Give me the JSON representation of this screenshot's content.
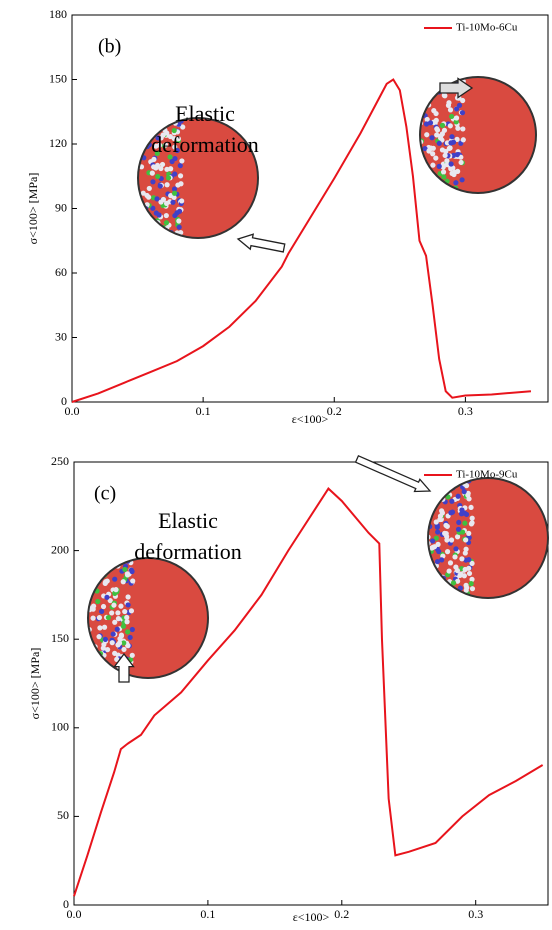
{
  "chart_data": [
    {
      "type": "line",
      "panel_label": "(b)",
      "xlabel": "ε<100>",
      "ylabel": "σ<100> [MPa]",
      "annotation_lines": [
        "Elastic",
        "deformation"
      ],
      "x": [
        0,
        0.02,
        0.04,
        0.06,
        0.08,
        0.1,
        0.12,
        0.14,
        0.16,
        0.165,
        0.18,
        0.2,
        0.22,
        0.24,
        0.245,
        0.25,
        0.255,
        0.26,
        0.265,
        0.27,
        0.275,
        0.28,
        0.285,
        0.29,
        0.3,
        0.32,
        0.35
      ],
      "series": [
        {
          "name": "Ti-10Mo-6Cu",
          "color": "#e8141c",
          "values": [
            0,
            4,
            9,
            14,
            19,
            26,
            35,
            47,
            63,
            69,
            84,
            104,
            125,
            148,
            150,
            145,
            128,
            105,
            75,
            68,
            45,
            20,
            5,
            2,
            3,
            3.5,
            5
          ]
        }
      ],
      "xlim": [
        0,
        0.363
      ],
      "ylim": [
        0,
        180
      ],
      "xticks": [
        {
          "value": 0,
          "label": "0.0"
        },
        0.1,
        0.2,
        0.3
      ],
      "yticks": [
        0,
        30,
        60,
        90,
        120,
        150,
        180
      ],
      "legend": "upper right"
    },
    {
      "type": "line",
      "panel_label": "(c)",
      "xlabel": "ε<100>",
      "ylabel": "σ<100> [MPa]",
      "annotation_lines": [
        "Elastic",
        "deformation"
      ],
      "x": [
        0,
        0.01,
        0.02,
        0.03,
        0.035,
        0.04,
        0.05,
        0.06,
        0.08,
        0.1,
        0.12,
        0.14,
        0.16,
        0.19,
        0.2,
        0.22,
        0.228,
        0.23,
        0.235,
        0.24,
        0.25,
        0.27,
        0.29,
        0.31,
        0.33,
        0.35
      ],
      "series": [
        {
          "name": "Ti-10Mo-9Cu",
          "color": "#e8141c",
          "values": [
            5,
            28,
            52,
            75,
            88,
            91,
            96,
            107,
            120,
            138,
            155,
            175,
            200,
            235,
            228,
            210,
            204,
            150,
            60,
            28,
            30,
            35,
            50,
            62,
            70,
            79
          ]
        }
      ],
      "xlim": [
        0,
        0.354
      ],
      "ylim": [
        0,
        250
      ],
      "xticks": [
        {
          "value": 0,
          "label": "0.0"
        },
        0.1,
        0.2,
        0.3
      ],
      "yticks": [
        0,
        50,
        100,
        150,
        200,
        250
      ],
      "legend": "upper right"
    }
  ]
}
